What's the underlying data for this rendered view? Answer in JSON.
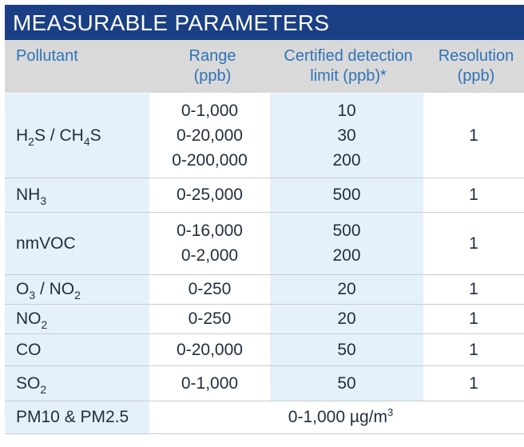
{
  "title": "MEASURABLE PARAMETERS",
  "header": {
    "pollutant": "Pollutant",
    "range_l1": "Range",
    "range_l2": "(ppb)",
    "cdl_l1": "Certified detection",
    "cdl_l2": "limit (ppb)*",
    "res_l1": "Resolution",
    "res_l2": "(ppb)"
  },
  "rows": [
    {
      "pollutant_parts": [
        "H",
        "2",
        "S / CH",
        "4",
        "S"
      ],
      "ranges": [
        "0-1,000",
        "0-20,000",
        "0-200,000"
      ],
      "limits": [
        "10",
        "30",
        "200"
      ],
      "resolution": "1"
    },
    {
      "pollutant_parts": [
        "NH",
        "3"
      ],
      "ranges": [
        "0-25,000"
      ],
      "limits": [
        "500"
      ],
      "resolution": "1"
    },
    {
      "pollutant": "nmVOC",
      "ranges": [
        "0-16,000",
        "0-2,000"
      ],
      "limits": [
        "500",
        "200"
      ],
      "resolution": "1"
    },
    {
      "pollutant_parts": [
        "O",
        "3",
        " / NO",
        "2"
      ],
      "ranges": [
        "0-250"
      ],
      "limits": [
        "20"
      ],
      "resolution": "1"
    },
    {
      "pollutant_parts": [
        "NO",
        "2"
      ],
      "ranges": [
        "0-250"
      ],
      "limits": [
        "20"
      ],
      "resolution": "1"
    },
    {
      "pollutant": "CO",
      "ranges": [
        "0-20,000"
      ],
      "limits": [
        "50"
      ],
      "resolution": "1"
    },
    {
      "pollutant_parts": [
        "SO",
        "2"
      ],
      "ranges": [
        "0-1,000"
      ],
      "limits": [
        "50"
      ],
      "resolution": "1"
    }
  ],
  "pm_row": {
    "pollutant": "PM10 & PM2.5",
    "value": "0-1,000 µg/m",
    "value_sup": "3"
  },
  "colors": {
    "title_bg": "#1a3f84",
    "header_bg": "#d9d9d9",
    "header_text": "#2f73b8",
    "shaded_col": "#e5f1fa"
  }
}
